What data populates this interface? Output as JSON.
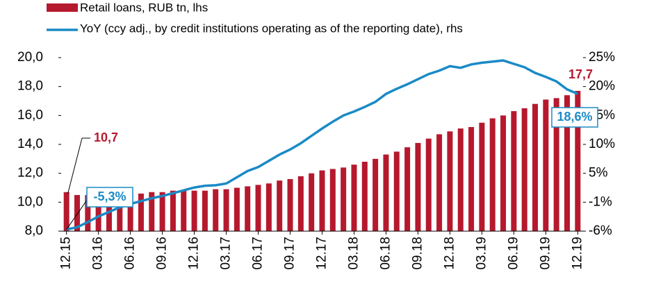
{
  "chart_data": {
    "type": "bar_line",
    "categories": [
      "12.15",
      null,
      null,
      "03.16",
      null,
      null,
      "06.16",
      null,
      null,
      "09.16",
      null,
      null,
      "12.16",
      null,
      null,
      "03.17",
      null,
      null,
      "06.17",
      null,
      null,
      "09.17",
      null,
      null,
      "12.17",
      null,
      null,
      "03.18",
      null,
      null,
      "06.18",
      null,
      null,
      "09.18",
      null,
      null,
      "12.18",
      null,
      null,
      "03.19",
      null,
      null,
      "06.19",
      null,
      null,
      "09.19",
      null,
      null,
      "12.19"
    ],
    "series": [
      {
        "name": "Retail loans, RUB tn, lhs",
        "type": "bar",
        "color": "#b5192e",
        "axis": "y",
        "values": [
          10.7,
          10.5,
          10.5,
          10.5,
          10.5,
          10.6,
          10.6,
          10.6,
          10.7,
          10.7,
          10.8,
          10.8,
          10.8,
          10.8,
          10.9,
          10.9,
          11.0,
          11.1,
          11.2,
          11.3,
          11.5,
          11.6,
          11.8,
          12.0,
          12.2,
          12.3,
          12.4,
          12.6,
          12.8,
          13.0,
          13.3,
          13.5,
          13.8,
          14.1,
          14.4,
          14.7,
          14.9,
          15.1,
          15.2,
          15.5,
          15.8,
          16.0,
          16.3,
          16.5,
          16.8,
          17.1,
          17.2,
          17.4,
          17.7
        ],
        "value_labels": [
          "10,7",
          null,
          null,
          null,
          null,
          null,
          null,
          null,
          null,
          null,
          null,
          null,
          null,
          null,
          null,
          null,
          null,
          null,
          null,
          null,
          null,
          null,
          null,
          null,
          null,
          null,
          null,
          null,
          null,
          null,
          null,
          null,
          null,
          null,
          null,
          null,
          null,
          null,
          null,
          null,
          null,
          null,
          null,
          null,
          null,
          null,
          null,
          null,
          "17,7"
        ]
      },
      {
        "name": "YoY (ccy adj., by credit institutions operating as of the reporting date), rhs",
        "type": "line",
        "color": "#1a8ac6",
        "axis": "y2",
        "values": [
          -5.3,
          -4.9,
          -4.0,
          -3.0,
          -2.2,
          -1.4,
          -0.8,
          -0.3,
          0.2,
          0.6,
          1.1,
          1.6,
          2.1,
          2.4,
          2.5,
          2.8,
          3.9,
          5.0,
          5.7,
          6.8,
          7.9,
          8.8,
          9.9,
          11.2,
          12.5,
          13.7,
          14.8,
          15.5,
          16.3,
          17.2,
          18.6,
          19.5,
          20.3,
          21.2,
          22.1,
          22.7,
          23.5,
          23.2,
          23.8,
          24.1,
          24.3,
          24.5,
          23.9,
          23.3,
          22.3,
          21.6,
          20.8,
          19.4,
          18.6
        ],
        "value_labels": [
          "-5,3%",
          null,
          null,
          null,
          null,
          null,
          null,
          null,
          null,
          null,
          null,
          null,
          null,
          null,
          null,
          null,
          null,
          null,
          null,
          null,
          null,
          null,
          null,
          null,
          null,
          null,
          null,
          null,
          null,
          null,
          null,
          null,
          null,
          null,
          null,
          null,
          null,
          null,
          null,
          null,
          null,
          null,
          null,
          null,
          null,
          null,
          null,
          null,
          "18,6%"
        ]
      }
    ],
    "ylim": [
      8,
      20
    ],
    "yticks": [
      {
        "value": 8,
        "label": "8,0"
      },
      {
        "value": 10,
        "label": "10,0"
      },
      {
        "value": 12,
        "label": "12,0"
      },
      {
        "value": 14,
        "label": "14,0"
      },
      {
        "value": 16,
        "label": "16,0"
      },
      {
        "value": 18,
        "label": "18,0"
      },
      {
        "value": 20,
        "label": "20,0"
      }
    ],
    "y2lim": [
      -5.6,
      25
    ],
    "y2ticks": [
      {
        "value": -5.6,
        "label": "-6%"
      },
      {
        "value": -0.5,
        "label": "-1%"
      },
      {
        "value": 4.6,
        "label": "5%"
      },
      {
        "value": 9.7,
        "label": "10%"
      },
      {
        "value": 14.8,
        "label": "15%"
      },
      {
        "value": 19.9,
        "label": "20%"
      },
      {
        "value": 25,
        "label": "25%"
      }
    ],
    "legend": "top-left",
    "grid": false
  }
}
